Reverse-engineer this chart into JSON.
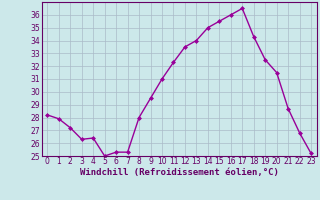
{
  "x": [
    0,
    1,
    2,
    3,
    4,
    5,
    6,
    7,
    8,
    9,
    10,
    11,
    12,
    13,
    14,
    15,
    16,
    17,
    18,
    19,
    20,
    21,
    22,
    23
  ],
  "y": [
    28.2,
    27.9,
    27.2,
    26.3,
    26.4,
    25.0,
    25.3,
    25.3,
    28.0,
    29.5,
    31.0,
    32.3,
    33.5,
    34.0,
    35.0,
    35.5,
    36.0,
    36.5,
    34.3,
    32.5,
    31.5,
    28.7,
    26.8,
    25.2
  ],
  "line_color": "#990099",
  "marker": "D",
  "marker_size": 2,
  "linewidth": 1.0,
  "xlabel": "Windchill (Refroidissement éolien,°C)",
  "ylim": [
    25,
    37
  ],
  "xlim": [
    -0.5,
    23.5
  ],
  "yticks": [
    25,
    26,
    27,
    28,
    29,
    30,
    31,
    32,
    33,
    34,
    35,
    36
  ],
  "xticks": [
    0,
    1,
    2,
    3,
    4,
    5,
    6,
    7,
    8,
    9,
    10,
    11,
    12,
    13,
    14,
    15,
    16,
    17,
    18,
    19,
    20,
    21,
    22,
    23
  ],
  "background_color": "#cce8ea",
  "grid_color": "#aabbc8",
  "xlabel_fontsize": 6.5,
  "tick_fontsize": 5.5,
  "label_color": "#660066"
}
